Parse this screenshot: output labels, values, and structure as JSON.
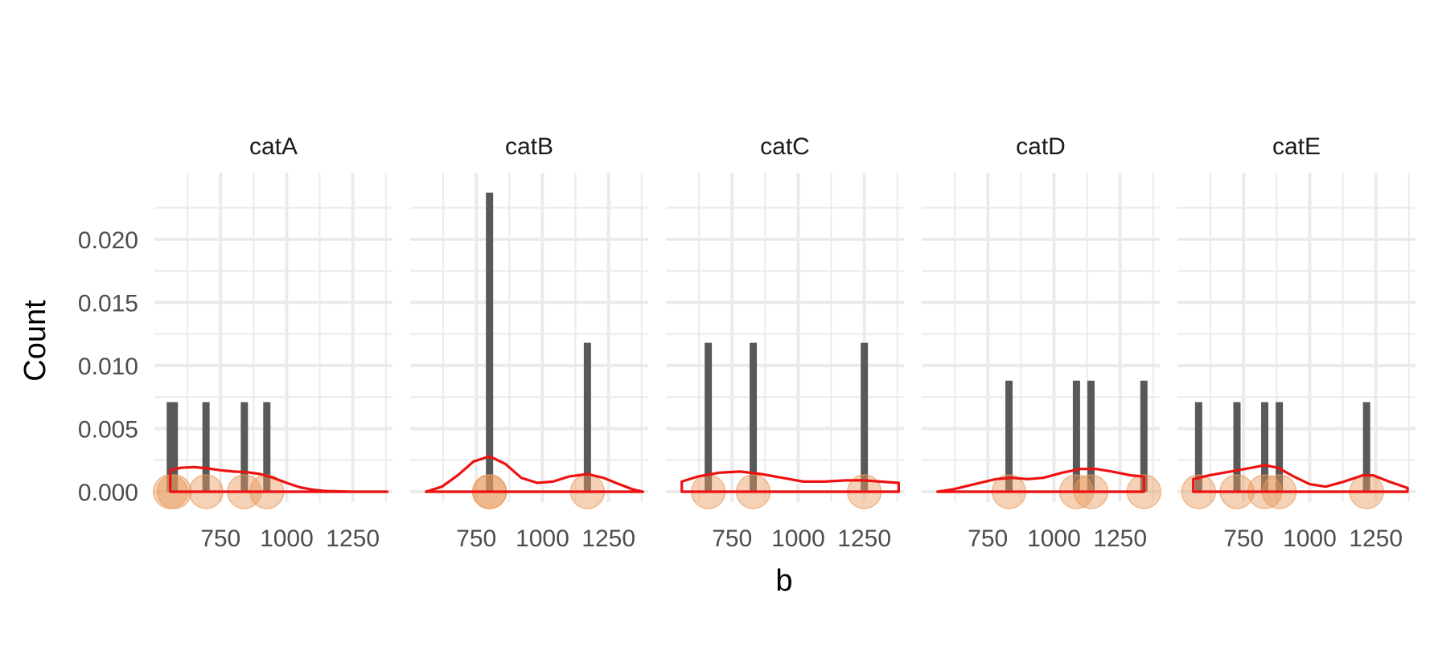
{
  "chart_data": {
    "type": "bar",
    "xlabel": "b",
    "ylabel": "Count",
    "xlim": [
      500,
      1400
    ],
    "ylim": [
      0,
      0.024
    ],
    "x_ticks": [
      750,
      1000,
      1250
    ],
    "x_tick_labels": [
      "750",
      "1000",
      "1250"
    ],
    "y_ticks": [
      0,
      0.005,
      0.01,
      0.015,
      0.02
    ],
    "y_tick_labels": [
      "0.000",
      "0.005",
      "0.010",
      "0.015",
      "0.020"
    ],
    "grid": true,
    "colors": {
      "bar": "#595959",
      "density": "#ee1111",
      "point": "#e8995c",
      "grid": "#ebebeb"
    },
    "panels": [
      {
        "name": "catA",
        "bars": [
          {
            "x": 560,
            "y": 0.0071
          },
          {
            "x": 575,
            "y": 0.0071
          },
          {
            "x": 695,
            "y": 0.0071
          },
          {
            "x": 840,
            "y": 0.0071
          },
          {
            "x": 925,
            "y": 0.0071
          }
        ],
        "points": [
          560,
          575,
          695,
          840,
          925
        ],
        "density": [
          [
            560,
            0.0017
          ],
          [
            600,
            0.0019
          ],
          [
            650,
            0.00195
          ],
          [
            700,
            0.00185
          ],
          [
            750,
            0.0017
          ],
          [
            800,
            0.0016
          ],
          [
            850,
            0.00155
          ],
          [
            900,
            0.0014
          ],
          [
            950,
            0.0011
          ],
          [
            1000,
            0.0007
          ],
          [
            1050,
            0.00035
          ],
          [
            1100,
            0.00015
          ],
          [
            1150,
            5e-05
          ],
          [
            1250,
            0.0
          ],
          [
            1380,
            0.0
          ]
        ]
      },
      {
        "name": "catB",
        "bars": [
          {
            "x": 800,
            "y": 0.0237
          },
          {
            "x": 1170,
            "y": 0.0118
          }
        ],
        "points": [
          800,
          800,
          1170
        ],
        "density": [
          [
            560,
            0.0
          ],
          [
            620,
            0.0004
          ],
          [
            680,
            0.0013
          ],
          [
            740,
            0.0024
          ],
          [
            800,
            0.0028
          ],
          [
            860,
            0.0022
          ],
          [
            920,
            0.0011
          ],
          [
            980,
            0.0007
          ],
          [
            1040,
            0.0008
          ],
          [
            1100,
            0.0012
          ],
          [
            1170,
            0.0014
          ],
          [
            1230,
            0.0011
          ],
          [
            1290,
            0.0006
          ],
          [
            1340,
            0.0002
          ],
          [
            1380,
            0.0
          ]
        ]
      },
      {
        "name": "catC",
        "bars": [
          {
            "x": 660,
            "y": 0.0118
          },
          {
            "x": 830,
            "y": 0.0118
          },
          {
            "x": 1250,
            "y": 0.0118
          }
        ],
        "points": [
          660,
          830,
          1250
        ],
        "density": [
          [
            560,
            0.0008
          ],
          [
            620,
            0.0012
          ],
          [
            700,
            0.0015
          ],
          [
            780,
            0.0016
          ],
          [
            860,
            0.0014
          ],
          [
            940,
            0.0011
          ],
          [
            1020,
            0.0008
          ],
          [
            1100,
            0.0008
          ],
          [
            1180,
            0.0009
          ],
          [
            1250,
            0.0009
          ],
          [
            1310,
            0.0008
          ],
          [
            1380,
            0.0007
          ]
        ]
      },
      {
        "name": "catD",
        "bars": [
          {
            "x": 830,
            "y": 0.0088
          },
          {
            "x": 1085,
            "y": 0.0088
          },
          {
            "x": 1140,
            "y": 0.0088
          },
          {
            "x": 1340,
            "y": 0.0088
          }
        ],
        "points": [
          830,
          1085,
          1140,
          1340
        ],
        "density": [
          [
            560,
            0.0
          ],
          [
            620,
            0.0002
          ],
          [
            700,
            0.0006
          ],
          [
            780,
            0.001
          ],
          [
            840,
            0.0011
          ],
          [
            900,
            0.001
          ],
          [
            960,
            0.0011
          ],
          [
            1030,
            0.0015
          ],
          [
            1100,
            0.0018
          ],
          [
            1160,
            0.0018
          ],
          [
            1220,
            0.0016
          ],
          [
            1290,
            0.0013
          ],
          [
            1340,
            0.0012
          ],
          [
            1340,
            0.0
          ]
        ]
      },
      {
        "name": "catE",
        "bars": [
          {
            "x": 580,
            "y": 0.0071
          },
          {
            "x": 725,
            "y": 0.0071
          },
          {
            "x": 830,
            "y": 0.0071
          },
          {
            "x": 885,
            "y": 0.0071
          },
          {
            "x": 1215,
            "y": 0.0071
          }
        ],
        "points": [
          580,
          725,
          830,
          885,
          1215
        ],
        "density": [
          [
            560,
            0.0
          ],
          [
            560,
            0.001
          ],
          [
            620,
            0.0013
          ],
          [
            700,
            0.0016
          ],
          [
            780,
            0.0019
          ],
          [
            830,
            0.0021
          ],
          [
            880,
            0.0019
          ],
          [
            940,
            0.0012
          ],
          [
            1000,
            0.0006
          ],
          [
            1060,
            0.0004
          ],
          [
            1130,
            0.0008
          ],
          [
            1200,
            0.0013
          ],
          [
            1240,
            0.0013
          ],
          [
            1300,
            0.0008
          ],
          [
            1370,
            0.0003
          ],
          [
            1370,
            0.0
          ]
        ]
      }
    ]
  }
}
